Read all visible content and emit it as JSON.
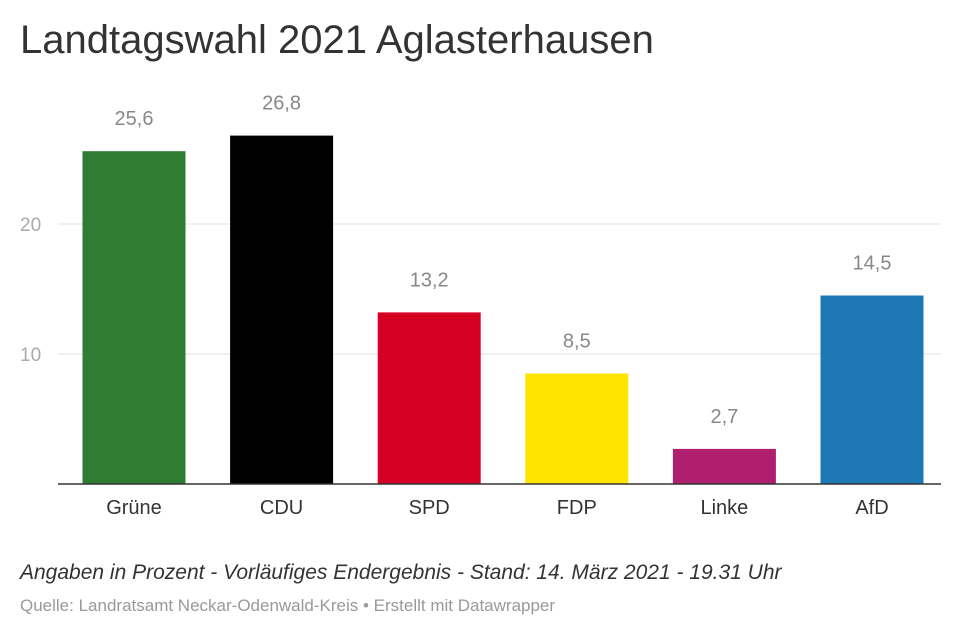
{
  "title": "Landtagswahl 2021 Aglasterhausen",
  "subtitle": "Angaben in Prozent - Vorläufiges Endergebnis - Stand: 14. März 2021 - 19.31 Uhr",
  "source": "Quelle: Landratsamt Neckar-Odenwald-Kreis • Erstellt mit Datawrapper",
  "chart_data": {
    "type": "bar",
    "categories": [
      "Grüne",
      "CDU",
      "SPD",
      "FDP",
      "Linke",
      "AfD"
    ],
    "values": [
      25.6,
      26.8,
      13.2,
      8.5,
      2.7,
      14.5
    ],
    "value_labels": [
      "25,6",
      "26,8",
      "13,2",
      "8,5",
      "2,7",
      "14,5"
    ],
    "colors": [
      "#2e7d32",
      "#000000",
      "#d50024",
      "#ffe400",
      "#b01f6e",
      "#1f77b4"
    ],
    "yticks": [
      10,
      20
    ],
    "ylim": [
      0,
      30
    ],
    "grid": true,
    "xlabel": "",
    "ylabel": ""
  }
}
